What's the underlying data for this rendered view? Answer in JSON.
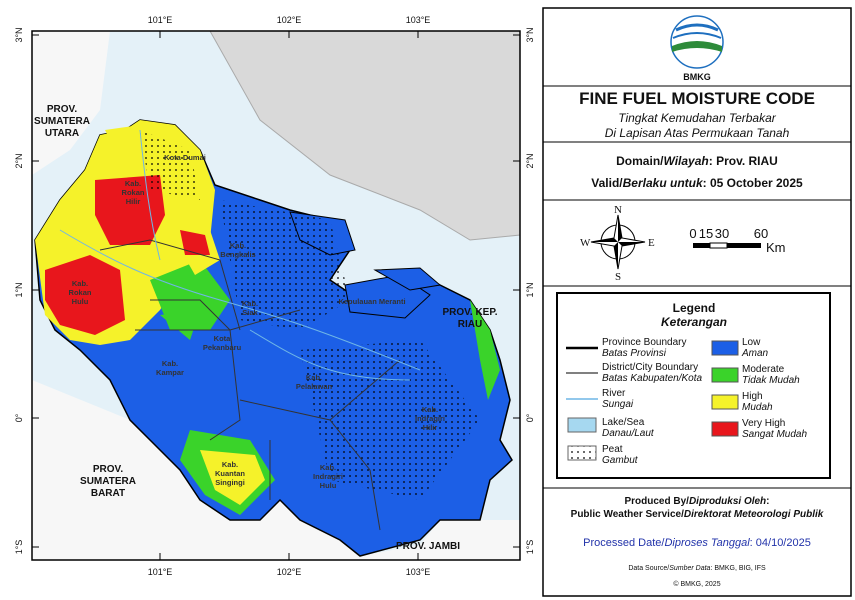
{
  "map": {
    "lon_labels": [
      "101°E",
      "102°E",
      "103°E"
    ],
    "lat_labels": [
      "3°N",
      "2°N",
      "1°N",
      "0°",
      "1°S"
    ],
    "region_labels": [
      [
        "PROV.",
        "SUMATERA",
        "UTARA"
      ],
      [
        "PROV.",
        "SUMATERA",
        "BARAT"
      ],
      [
        "PROV. KEP.",
        "RIAU"
      ],
      [
        "PROV. JAMBI"
      ]
    ],
    "district_labels": [
      [
        "Kota Dumai"
      ],
      [
        "Kab.",
        "Rokan",
        "Hilir"
      ],
      [
        "Kab.",
        "Rokan",
        "Hulu"
      ],
      [
        "Kab.",
        "Bengkalis"
      ],
      [
        "Kab.",
        "Siak"
      ],
      [
        "Kota",
        "Pekanbaru"
      ],
      [
        "Kab.",
        "Kampar"
      ],
      [
        "Kab.",
        "Pelalawan"
      ],
      [
        "Kab.",
        "Indragiri",
        "Hilir"
      ],
      [
        "Kab.",
        "Kuantan",
        "Singingi"
      ],
      [
        "Kab.",
        "Indragiri",
        "Hulu"
      ],
      [
        "Kepulauan Meranti"
      ]
    ]
  },
  "header": {
    "logo_text": "BMKG",
    "title": "FINE FUEL MOISTURE CODE",
    "subtitle_lines": [
      "Tingkat Kemudahan Terbakar",
      "Di Lapisan Atas Permukaan Tanah"
    ]
  },
  "domain": [
    "Domain/",
    "Wilayah",
    ": Prov. RIAU"
  ],
  "valid": [
    "Valid/",
    "Berlaku untuk",
    ": 05 October 2025"
  ],
  "compass": {
    "north": "N",
    "east": "E",
    "south": "S",
    "west": "W"
  },
  "scale_bar": {
    "labels": [
      "0",
      "15",
      "30",
      "60"
    ],
    "unit": "Km"
  },
  "legend": {
    "title": "Legend",
    "subtitle": "Keterangan",
    "features": [
      [
        "Province Boundary",
        "Batas Provinsi"
      ],
      [
        "District/City Boundary",
        "Batas Kabupaten/Kota"
      ],
      [
        "River",
        "Sungai"
      ],
      [
        "Lake/Sea",
        "Danau/Laut"
      ],
      [
        "Peat",
        "Gambut"
      ]
    ],
    "classes": [
      {
        "label": "Low",
        "label_id": "Aman",
        "color": "#1c5fe6"
      },
      {
        "label": "Moderate",
        "label_id": "Tidak Mudah",
        "color": "#3ad32a"
      },
      {
        "label": "High",
        "label_id": "Mudah",
        "color": "#f5f22a"
      },
      {
        "label": "Very High",
        "label_id": "Sangat Mudah",
        "color": "#e8161c"
      }
    ]
  },
  "credits": {
    "produced_by": [
      "Produced By/",
      "Diproduksi Oleh",
      ":"
    ],
    "producer": [
      "Public Weather Service/",
      "Direktorat Meteorologi Publik"
    ],
    "processed": [
      "Processed Date/",
      "Diproses Tanggal",
      ": 04/10/2025"
    ],
    "data_source": [
      "Data Source/",
      "Sumber Data",
      ": BMKG, BIG, IFS"
    ],
    "copyright": "© BMKG, 2025"
  }
}
